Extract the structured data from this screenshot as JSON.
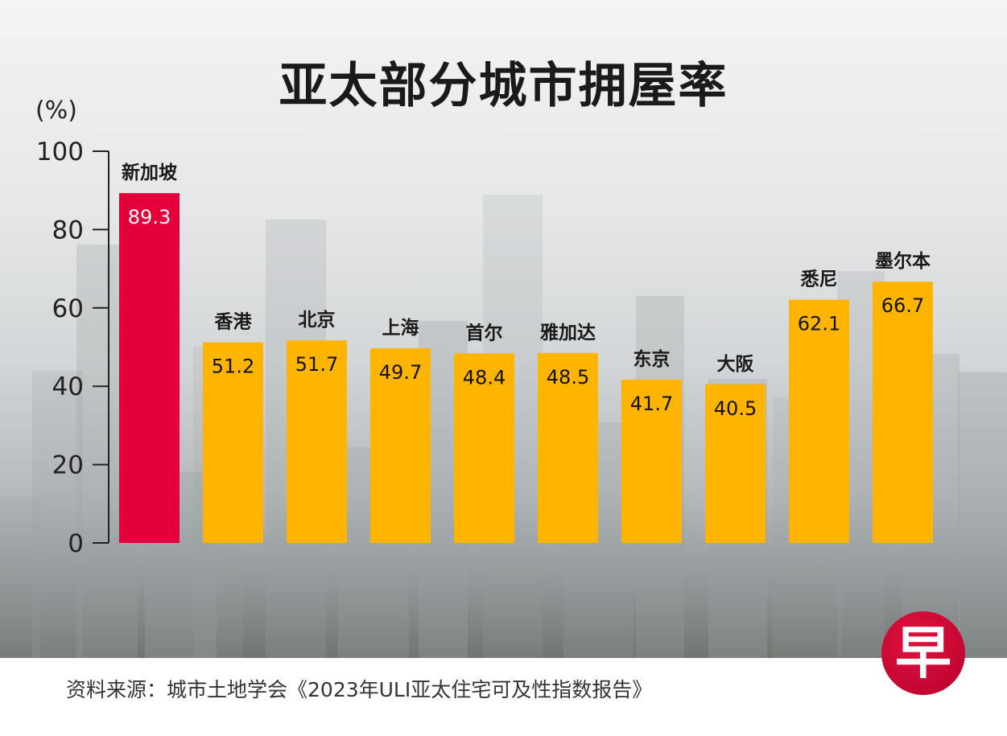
{
  "title": "亚太部分城市拥屋率",
  "source": "资料来源：城市土地学会《2023年ULI亚太住宅可及性指数报告》",
  "logo_text": "早",
  "colors": {
    "highlight": "#e4003b",
    "bar": "#ffb400",
    "axis": "#222222"
  },
  "chart_data": {
    "type": "bar",
    "title": "亚太部分城市拥屋率",
    "ylabel": "(%)",
    "ylim": [
      0,
      100
    ],
    "yticks": [
      0,
      20,
      40,
      60,
      80,
      100
    ],
    "grid": false,
    "categories": [
      "新加坡",
      "香港",
      "北京",
      "上海",
      "首尔",
      "雅加达",
      "东京",
      "大阪",
      "悉尼",
      "墨尔本"
    ],
    "values": [
      89.3,
      51.2,
      51.7,
      49.7,
      48.4,
      48.5,
      41.7,
      40.5,
      62.1,
      66.7
    ],
    "value_labels": [
      "89.3",
      "51.2",
      "51.7",
      "49.7",
      "48.4",
      "48.5",
      "41.7",
      "40.5",
      "62.1",
      "66.7"
    ],
    "highlight_index": 0
  }
}
